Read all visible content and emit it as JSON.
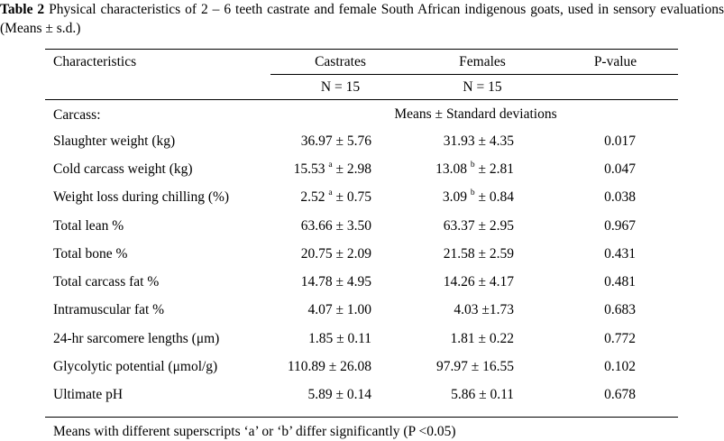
{
  "caption": {
    "label": "Table 2",
    "text": " Physical characteristics of 2 – 6 teeth castrate and female South African indigenous goats, used in sensory evaluations (Means ± s.d.)"
  },
  "header": {
    "characteristics": "Characteristics",
    "castrates": "Castrates",
    "females": "Females",
    "pvalue": "P-value",
    "n_castrates": "N = 15",
    "n_females": "N = 15"
  },
  "section": {
    "label": "Carcass:",
    "means_label": "Means ± Standard deviations"
  },
  "rows": [
    {
      "name": "Slaughter weight (kg)",
      "cas": "36.97 ± 5.76",
      "cas_sup": "",
      "cas_sd": "",
      "fem": "31.93 ± 4.35",
      "fem_sup": "",
      "fem_sd": "",
      "p": "0.017"
    },
    {
      "name": "Cold carcass weight (kg)",
      "cas": "15.53 ",
      "cas_sup": "a",
      "cas_sd": " ± 2.98",
      "fem": "13.08 ",
      "fem_sup": "b",
      "fem_sd": " ± 2.81",
      "p": "0.047"
    },
    {
      "name": "Weight loss during chilling (%)",
      "cas": "2.52 ",
      "cas_sup": "a",
      "cas_sd": " ± 0.75",
      "fem": "3.09 ",
      "fem_sup": "b",
      "fem_sd": " ± 0.84",
      "p": "0.038"
    },
    {
      "name": "Total lean %",
      "cas": "63.66 ± 3.50",
      "cas_sup": "",
      "cas_sd": "",
      "fem": "63.37 ± 2.95",
      "fem_sup": "",
      "fem_sd": "",
      "p": "0.967"
    },
    {
      "name": "Total bone %",
      "cas": "20.75 ± 2.09",
      "cas_sup": "",
      "cas_sd": "",
      "fem": "21.58 ± 2.59",
      "fem_sup": "",
      "fem_sd": "",
      "p": "0.431"
    },
    {
      "name": "Total carcass fat %",
      "cas": "14.78 ± 4.95",
      "cas_sup": "",
      "cas_sd": "",
      "fem": "14.26 ± 4.17",
      "fem_sup": "",
      "fem_sd": "",
      "p": "0.481"
    },
    {
      "name": "Intramuscular fat %",
      "cas": "4.07 ± 1.00",
      "cas_sup": "",
      "cas_sd": "",
      "fem": "4.03 ±1.73",
      "fem_sup": "",
      "fem_sd": "",
      "p": "0.683"
    },
    {
      "name": "24-hr sarcomere lengths (μm)",
      "cas": "1.85 ± 0.11",
      "cas_sup": "",
      "cas_sd": "",
      "fem": "1.81 ± 0.22",
      "fem_sup": "",
      "fem_sd": "",
      "p": "0.772"
    },
    {
      "name": "Glycolytic potential (μmol/g)",
      "cas": "110.89 ± 26.08",
      "cas_sup": "",
      "cas_sd": "",
      "fem": "97.97 ± 16.55",
      "fem_sup": "",
      "fem_sd": "",
      "p": "0.102"
    },
    {
      "name": "Ultimate pH",
      "cas": "5.89 ± 0.14",
      "cas_sup": "",
      "cas_sd": "",
      "fem": "5.86 ± 0.11",
      "fem_sup": "",
      "fem_sd": "",
      "p": "0.678"
    }
  ],
  "footnote": "Means with different superscripts ‘a’ or ‘b’ differ significantly (P <0.05)"
}
